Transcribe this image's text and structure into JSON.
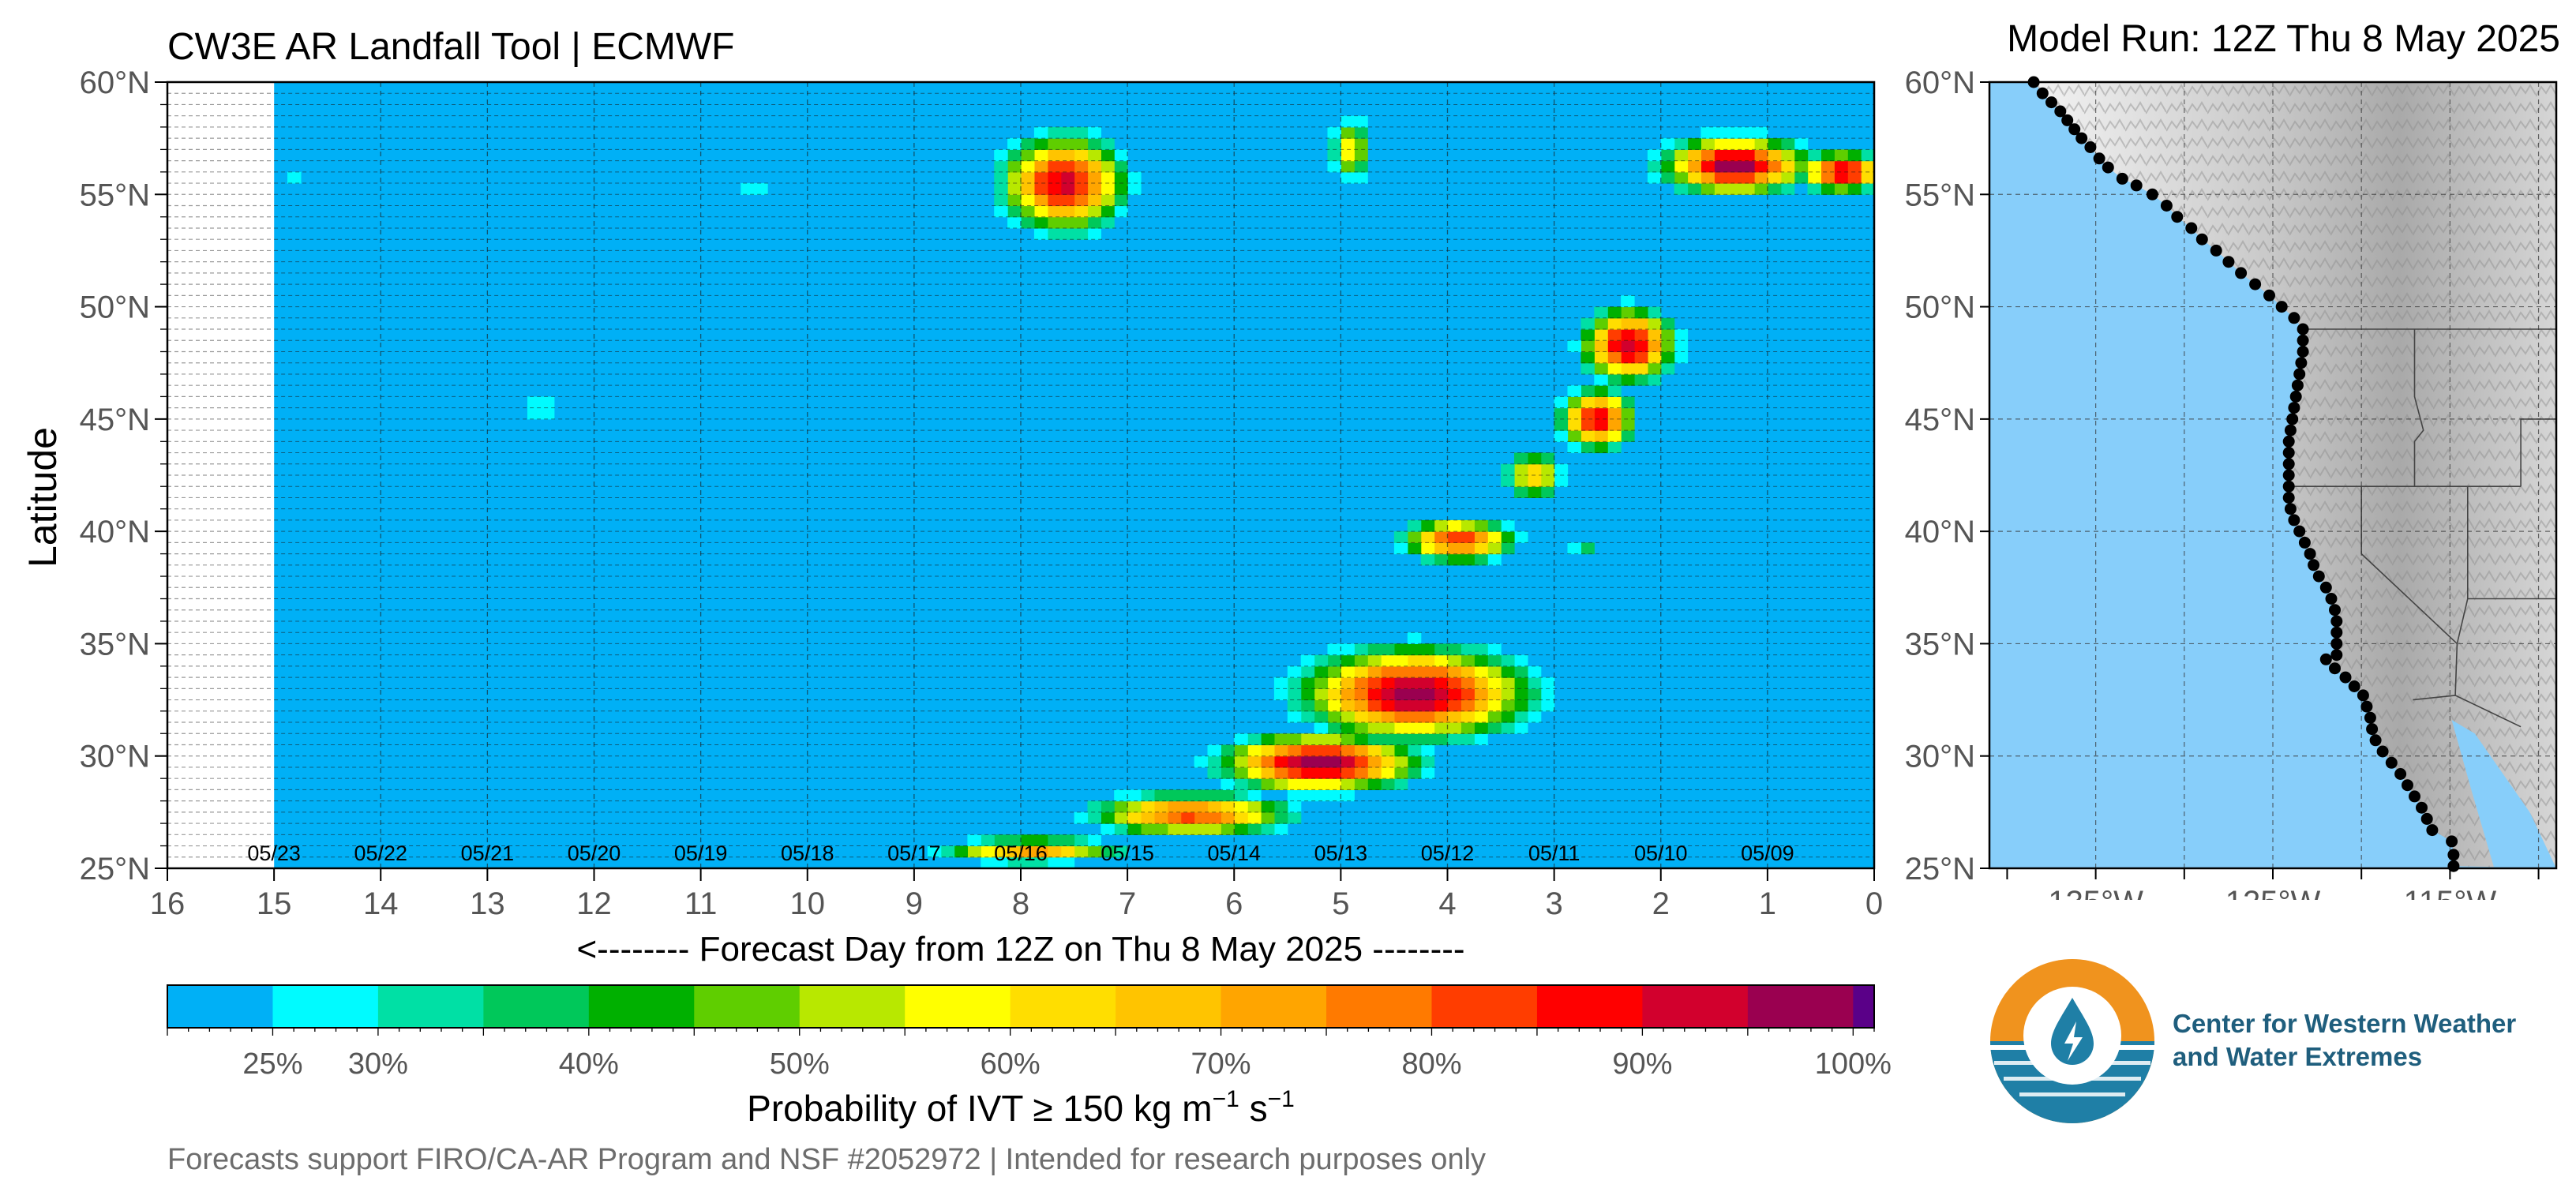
{
  "header": {
    "title": "CW3E AR Landfall Tool | ECMWF",
    "model_run": "Model Run: 12Z Thu 8 May 2025"
  },
  "footer": {
    "note": "Forecasts support FIRO/CA-AR Program and NSF #2052972 | Intended for research purposes only"
  },
  "logo": {
    "line1": "Center for Western Weather",
    "line2": "and Water Extremes"
  },
  "colors": {
    "background_field": "#00b0f6",
    "no_data": "#ffffff",
    "map_ocean": "#87cefa",
    "coast_points": "#000000",
    "logo_orange": "#f0931e",
    "logo_blue": "#1f7fa6"
  },
  "chart_data": [
    {
      "type": "heatmap",
      "title": "CW3E AR Landfall Tool | ECMWF",
      "xlabel": "<-------- Forecast Day from 12Z on Thu 8 May 2025 --------",
      "ylabel": "Latitude",
      "x_reversed": true,
      "xlim": [
        16,
        0
      ],
      "ylim": [
        25,
        60
      ],
      "x_ticks": [
        "16",
        "15",
        "14",
        "13",
        "12",
        "11",
        "10",
        "9",
        "8",
        "7",
        "6",
        "5",
        "4",
        "3",
        "2",
        "1",
        "0"
      ],
      "y_ticks": [
        "25°N",
        "30°N",
        "35°N",
        "40°N",
        "45°N",
        "50°N",
        "55°N",
        "60°N"
      ],
      "date_labels": [
        {
          "day": 15,
          "label": "05/23"
        },
        {
          "day": 14,
          "label": "05/22"
        },
        {
          "day": 13,
          "label": "05/21"
        },
        {
          "day": 12,
          "label": "05/20"
        },
        {
          "day": 11,
          "label": "05/19"
        },
        {
          "day": 10,
          "label": "05/18"
        },
        {
          "day": 9,
          "label": "05/17"
        },
        {
          "day": 8,
          "label": "05/16"
        },
        {
          "day": 7,
          "label": "05/15"
        },
        {
          "day": 6,
          "label": "05/14"
        },
        {
          "day": 5,
          "label": "05/13"
        },
        {
          "day": 4,
          "label": "05/12"
        },
        {
          "day": 3,
          "label": "05/11"
        },
        {
          "day": 2,
          "label": "05/10"
        },
        {
          "day": 1,
          "label": "05/09"
        }
      ],
      "no_data_x_range": [
        16,
        15
      ],
      "grid": true,
      "features": [
        {
          "day": 7.6,
          "lat": 55.5,
          "spread_day": 0.6,
          "spread_lat": 2.2,
          "max_prob": 92
        },
        {
          "day": 1.3,
          "lat": 56.3,
          "spread_day": 0.7,
          "spread_lat": 1.3,
          "max_prob": 100
        },
        {
          "day": 0.3,
          "lat": 56.0,
          "spread_day": 0.4,
          "spread_lat": 0.9,
          "max_prob": 95
        },
        {
          "day": 4.9,
          "lat": 57.0,
          "spread_day": 0.22,
          "spread_lat": 1.5,
          "max_prob": 60
        },
        {
          "day": 2.3,
          "lat": 48.3,
          "spread_day": 0.45,
          "spread_lat": 1.7,
          "max_prob": 95
        },
        {
          "day": 2.6,
          "lat": 45.0,
          "spread_day": 0.35,
          "spread_lat": 1.4,
          "max_prob": 92
        },
        {
          "day": 3.2,
          "lat": 42.5,
          "spread_day": 0.3,
          "spread_lat": 1.2,
          "max_prob": 65
        },
        {
          "day": 3.9,
          "lat": 39.6,
          "spread_day": 0.55,
          "spread_lat": 1.0,
          "max_prob": 85
        },
        {
          "day": 4.3,
          "lat": 32.8,
          "spread_day": 1.1,
          "spread_lat": 2.1,
          "max_prob": 98
        },
        {
          "day": 5.2,
          "lat": 29.7,
          "spread_day": 0.95,
          "spread_lat": 1.3,
          "max_prob": 100
        },
        {
          "day": 6.4,
          "lat": 27.4,
          "spread_day": 1.0,
          "spread_lat": 1.0,
          "max_prob": 82
        },
        {
          "day": 7.9,
          "lat": 25.8,
          "spread_day": 0.9,
          "spread_lat": 0.6,
          "max_prob": 72
        },
        {
          "day": 12.5,
          "lat": 45.5,
          "spread_day": 0.15,
          "spread_lat": 1.4,
          "max_prob": 32
        },
        {
          "day": 8.3,
          "lat": 45.0,
          "spread_day": 0.4,
          "spread_lat": 0.5,
          "max_prob": 28
        },
        {
          "day": 10.5,
          "lat": 55.3,
          "spread_day": 0.15,
          "spread_lat": 0.6,
          "max_prob": 30
        },
        {
          "day": 2.7,
          "lat": 39.3,
          "spread_day": 0.2,
          "spread_lat": 0.4,
          "max_prob": 38
        },
        {
          "day": 14.8,
          "lat": 55.8,
          "spread_day": 0.2,
          "spread_lat": 1.0,
          "max_prob": 28
        }
      ]
    },
    {
      "type": "colorbar",
      "label": "Probability of IVT ≥ 150 kg m−1 s−1",
      "bins": [
        {
          "from": 20,
          "to": 25,
          "color": "#00b0f6"
        },
        {
          "from": 25,
          "to": 30,
          "color": "#00fbff"
        },
        {
          "from": 30,
          "to": 35,
          "color": "#00e0a5"
        },
        {
          "from": 35,
          "to": 40,
          "color": "#00c85a"
        },
        {
          "from": 40,
          "to": 45,
          "color": "#00b000"
        },
        {
          "from": 45,
          "to": 50,
          "color": "#5fce00"
        },
        {
          "from": 50,
          "to": 55,
          "color": "#b8e800"
        },
        {
          "from": 55,
          "to": 60,
          "color": "#ffff00"
        },
        {
          "from": 60,
          "to": 65,
          "color": "#ffde00"
        },
        {
          "from": 65,
          "to": 70,
          "color": "#ffc400"
        },
        {
          "from": 70,
          "to": 75,
          "color": "#ffa500"
        },
        {
          "from": 75,
          "to": 80,
          "color": "#ff7a00"
        },
        {
          "from": 80,
          "to": 85,
          "color": "#ff3d00"
        },
        {
          "from": 85,
          "to": 90,
          "color": "#ff0000"
        },
        {
          "from": 90,
          "to": 95,
          "color": "#d2002d"
        },
        {
          "from": 95,
          "to": 100,
          "color": "#9a0050"
        },
        {
          "from": 100,
          "to": 101,
          "color": "#5a0088"
        }
      ],
      "tick_labels": [
        {
          "value": 25,
          "label": "25%"
        },
        {
          "value": 30,
          "label": "30%"
        },
        {
          "value": 40,
          "label": "40%"
        },
        {
          "value": 50,
          "label": "50%"
        },
        {
          "value": 60,
          "label": "60%"
        },
        {
          "value": 70,
          "label": "70%"
        },
        {
          "value": 80,
          "label": "80%"
        },
        {
          "value": 90,
          "label": "90%"
        },
        {
          "value": 100,
          "label": "100%"
        }
      ]
    },
    {
      "type": "map",
      "lon_range": [
        -141,
        -109
      ],
      "lat_range": [
        25,
        60
      ],
      "x_ticks": [
        "135°W",
        "125°W",
        "115°W"
      ],
      "y_ticks": [
        "25°N",
        "30°N",
        "35°N",
        "40°N",
        "45°N",
        "50°N",
        "55°N",
        "60°N"
      ],
      "coast_points": [
        [
          -138.5,
          60.0
        ],
        [
          -138.0,
          59.5
        ],
        [
          -137.5,
          59.1
        ],
        [
          -137.0,
          58.7
        ],
        [
          -136.6,
          58.3
        ],
        [
          -136.2,
          57.9
        ],
        [
          -135.8,
          57.5
        ],
        [
          -135.3,
          57.1
        ],
        [
          -134.8,
          56.6
        ],
        [
          -134.3,
          56.2
        ],
        [
          -133.5,
          55.7
        ],
        [
          -132.7,
          55.4
        ],
        [
          -131.8,
          55.0
        ],
        [
          -131.0,
          54.5
        ],
        [
          -130.4,
          54.0
        ],
        [
          -129.6,
          53.5
        ],
        [
          -129.0,
          53.0
        ],
        [
          -128.2,
          52.5
        ],
        [
          -127.5,
          52.0
        ],
        [
          -126.8,
          51.5
        ],
        [
          -126.0,
          51.0
        ],
        [
          -125.2,
          50.5
        ],
        [
          -124.5,
          50.0
        ],
        [
          -123.8,
          49.5
        ],
        [
          -123.3,
          49.0
        ],
        [
          -123.3,
          48.5
        ],
        [
          -123.3,
          48.0
        ],
        [
          -123.4,
          47.5
        ],
        [
          -123.5,
          47.0
        ],
        [
          -123.6,
          46.5
        ],
        [
          -123.7,
          46.0
        ],
        [
          -123.8,
          45.5
        ],
        [
          -123.9,
          45.0
        ],
        [
          -124.0,
          44.5
        ],
        [
          -124.1,
          44.0
        ],
        [
          -124.1,
          43.5
        ],
        [
          -124.1,
          43.0
        ],
        [
          -124.1,
          42.5
        ],
        [
          -124.1,
          42.0
        ],
        [
          -124.1,
          41.5
        ],
        [
          -124.0,
          41.0
        ],
        [
          -123.8,
          40.5
        ],
        [
          -123.5,
          40.0
        ],
        [
          -123.2,
          39.5
        ],
        [
          -122.9,
          39.0
        ],
        [
          -122.7,
          38.5
        ],
        [
          -122.4,
          38.0
        ],
        [
          -122.0,
          37.5
        ],
        [
          -121.7,
          37.0
        ],
        [
          -121.5,
          36.5
        ],
        [
          -121.4,
          36.0
        ],
        [
          -121.4,
          35.5
        ],
        [
          -121.4,
          35.0
        ],
        [
          -121.4,
          34.5
        ],
        [
          -122.0,
          34.3
        ],
        [
          -121.5,
          33.9
        ],
        [
          -120.9,
          33.5
        ],
        [
          -120.4,
          33.1
        ],
        [
          -119.9,
          32.7
        ],
        [
          -119.7,
          32.2
        ],
        [
          -119.5,
          31.7
        ],
        [
          -119.4,
          31.2
        ],
        [
          -119.2,
          30.7
        ],
        [
          -118.8,
          30.2
        ],
        [
          -118.3,
          29.7
        ],
        [
          -117.8,
          29.2
        ],
        [
          -117.4,
          28.7
        ],
        [
          -117.0,
          28.2
        ],
        [
          -116.6,
          27.7
        ],
        [
          -116.3,
          27.2
        ],
        [
          -116.0,
          26.7
        ],
        [
          -114.9,
          26.2
        ],
        [
          -114.8,
          25.6
        ],
        [
          -114.8,
          25.1
        ]
      ]
    }
  ]
}
